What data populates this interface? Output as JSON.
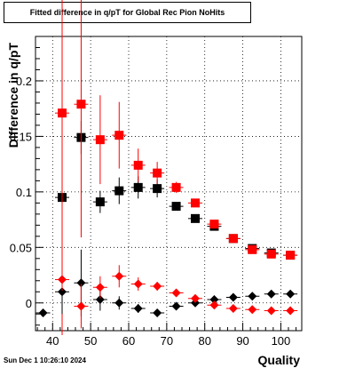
{
  "timestamp": "Sun Dec  1 10:26:10 2024",
  "chart_data": {
    "type": "scatter",
    "title": "Fitted difference in q/pT for Global Rec Pion NoHits",
    "xlabel": "Quality",
    "ylabel": "Difference in q/pT",
    "xlim": [
      35.5,
      105.5
    ],
    "ylim": [
      -0.025,
      0.24
    ],
    "x_ticks": [
      40,
      50,
      60,
      70,
      80,
      90,
      100
    ],
    "x_tick_labels": [
      "40",
      "50",
      "60",
      "70",
      "80",
      "90",
      "100"
    ],
    "y_ticks": [
      0,
      0.05,
      0.1,
      0.15,
      0.2
    ],
    "y_tick_labels": [
      "0",
      "0.05",
      "0.1",
      "0.15",
      "0.2"
    ],
    "grid": true,
    "series": [
      {
        "marker": "square",
        "color": "#000000",
        "x": [
          42.5,
          47.5,
          52.5,
          57.5,
          62.5,
          67.5,
          72.5,
          77.5,
          82.5,
          87.5,
          92.5,
          97.5,
          102.5
        ],
        "y": [
          0.095,
          0.149,
          0.091,
          0.101,
          0.104,
          0.103,
          0.087,
          0.076,
          0.069,
          0.058,
          0.049,
          0.045,
          0.043
        ],
        "yerr": [
          0.035,
          0.015,
          0.01,
          0.012,
          0.01,
          0.008,
          0.003,
          0.003,
          0.003,
          0.003,
          0.002,
          0.002,
          0.002
        ]
      },
      {
        "marker": "square",
        "color": "#ff0000",
        "x": [
          42.5,
          47.5,
          52.5,
          57.5,
          62.5,
          67.5,
          72.5,
          77.5,
          82.5,
          87.5,
          92.5,
          97.5,
          102.5
        ],
        "y": [
          0.171,
          0.179,
          0.147,
          0.151,
          0.124,
          0.117,
          0.104,
          0.09,
          0.071,
          0.058,
          0.048,
          0.044,
          0.043
        ],
        "yerr": [
          0.2,
          0.12,
          0.04,
          0.03,
          0.015,
          0.01,
          0.005,
          0.003,
          0.003,
          0.003,
          0.002,
          0.002,
          0.002
        ]
      },
      {
        "marker": "diamond",
        "color": "#000000",
        "x": [
          37.5,
          42.5,
          47.5,
          52.5,
          57.5,
          62.5,
          67.5,
          72.5,
          77.5,
          82.5,
          87.5,
          92.5,
          97.5,
          102.5
        ],
        "y": [
          -0.009,
          0.01,
          0.018,
          0.003,
          0.0,
          -0.005,
          -0.009,
          -0.003,
          0.0,
          0.003,
          0.005,
          0.006,
          0.008,
          0.008
        ],
        "yerr": [
          0.003,
          0.02,
          0.03,
          0.01,
          0.006,
          0.004,
          0.002,
          0.0015,
          0.001,
          0.001,
          0.001,
          0.001,
          0.001,
          0.001
        ]
      },
      {
        "marker": "diamond",
        "color": "#ff0000",
        "x": [
          42.5,
          47.5,
          52.5,
          57.5,
          62.5,
          67.5,
          72.5,
          77.5,
          82.5,
          87.5,
          92.5,
          97.5,
          102.5
        ],
        "y": [
          0.021,
          -0.003,
          0.014,
          0.024,
          0.017,
          0.015,
          0.009,
          0.004,
          -0.002,
          -0.005,
          -0.006,
          -0.007,
          -0.007
        ],
        "yerr": [
          0.01,
          0.02,
          0.01,
          0.01,
          0.006,
          0.004,
          0.002,
          0.0015,
          0.001,
          0.001,
          0.001,
          0.001,
          0.001
        ]
      }
    ]
  }
}
